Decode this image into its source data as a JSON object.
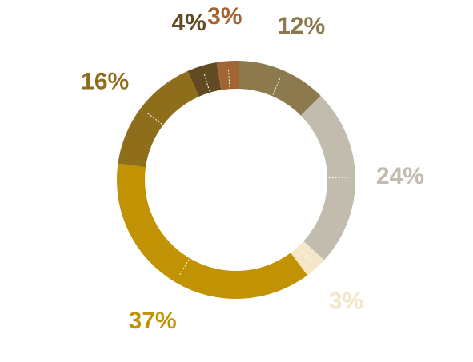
{
  "chart_data": {
    "type": "pie",
    "variant": "donut",
    "title": "",
    "legend": "none",
    "slices": [
      {
        "value": 12,
        "label": "12%",
        "color": "#8C7A4E"
      },
      {
        "value": 24,
        "label": "24%",
        "color": "#C2BCAF"
      },
      {
        "value": 3,
        "label": "3%",
        "color": "#F4E6C8"
      },
      {
        "value": 37,
        "label": "37%",
        "color": "#C29205"
      },
      {
        "value": 16,
        "label": "16%",
        "color": "#8E6E1B"
      },
      {
        "value": 4,
        "label": "4%",
        "color": "#624B22"
      },
      {
        "value": 3,
        "label": "3%",
        "color": "#A06532"
      }
    ]
  }
}
